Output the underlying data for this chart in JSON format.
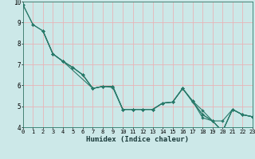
{
  "xlabel": "Humidex (Indice chaleur)",
  "xlim": [
    0,
    23
  ],
  "ylim": [
    4,
    10
  ],
  "yticks": [
    4,
    5,
    6,
    7,
    8,
    9,
    10
  ],
  "xticks": [
    0,
    1,
    2,
    3,
    4,
    5,
    6,
    7,
    8,
    9,
    10,
    11,
    12,
    13,
    14,
    15,
    16,
    17,
    18,
    19,
    20,
    21,
    22,
    23
  ],
  "bg_color": "#cce8e8",
  "grid_color": "#e8b4b8",
  "line_color": "#2a7a6a",
  "lines": [
    {
      "x": [
        0,
        1,
        2,
        3,
        4,
        5,
        6,
        7,
        8,
        9,
        10,
        11,
        12,
        13,
        14,
        15,
        16,
        17,
        18,
        19,
        20,
        21,
        22,
        23
      ],
      "y": [
        9.85,
        8.9,
        8.6,
        7.5,
        7.15,
        6.85,
        6.5,
        5.85,
        5.95,
        5.9,
        4.85,
        4.85,
        4.85,
        4.85,
        5.15,
        5.2,
        5.85,
        5.25,
        4.45,
        4.3,
        3.8,
        4.85,
        4.6,
        4.5
      ]
    },
    {
      "x": [
        0,
        1,
        2,
        3,
        4,
        5,
        6,
        7,
        8,
        9,
        10,
        11,
        12,
        13,
        14,
        15,
        16,
        17,
        18,
        19,
        20,
        21,
        22,
        23
      ],
      "y": [
        9.85,
        8.9,
        8.6,
        7.5,
        7.15,
        6.85,
        6.5,
        5.85,
        5.95,
        5.95,
        4.85,
        4.85,
        4.85,
        4.85,
        5.15,
        5.2,
        5.85,
        5.2,
        4.6,
        4.3,
        4.3,
        4.85,
        4.6,
        4.5
      ]
    },
    {
      "x": [
        2,
        3,
        4,
        7,
        8,
        9,
        10,
        11,
        12,
        13,
        14,
        15,
        16,
        17,
        18,
        19,
        20,
        21,
        22,
        23
      ],
      "y": [
        8.6,
        7.5,
        7.15,
        5.85,
        5.95,
        5.95,
        4.85,
        4.85,
        4.85,
        4.85,
        5.15,
        5.2,
        5.85,
        5.25,
        4.8,
        4.3,
        3.8,
        4.85,
        4.6,
        4.5
      ]
    },
    {
      "x": [
        2,
        3,
        4,
        5,
        6,
        7,
        8,
        9,
        10,
        11,
        12,
        13,
        14,
        15,
        16,
        17,
        18,
        19,
        20,
        21,
        22,
        23
      ],
      "y": [
        8.6,
        7.5,
        7.15,
        6.85,
        6.5,
        5.85,
        5.95,
        5.95,
        4.85,
        4.85,
        4.85,
        4.85,
        5.15,
        5.2,
        5.85,
        5.25,
        4.6,
        4.3,
        3.8,
        4.85,
        4.6,
        4.5
      ]
    }
  ]
}
